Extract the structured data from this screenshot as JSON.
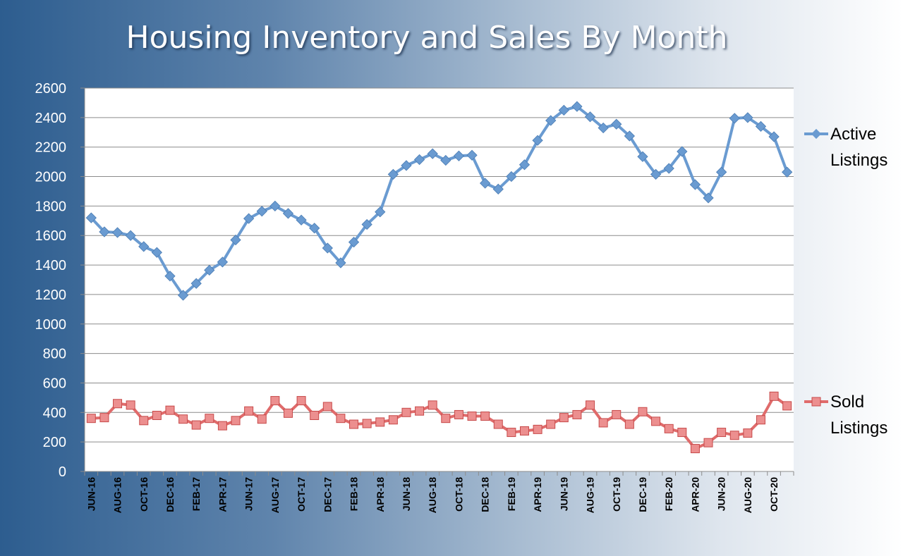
{
  "chart_data": {
    "type": "line",
    "title": "Housing Inventory and Sales By Month",
    "xlabel": "",
    "ylabel": "",
    "ylim": [
      0,
      2600
    ],
    "yticks": [
      0,
      200,
      400,
      600,
      800,
      1000,
      1200,
      1400,
      1600,
      1800,
      2000,
      2200,
      2400,
      2600
    ],
    "grid": true,
    "legend": "right",
    "categories": [
      "JUN-16",
      "JUL-16",
      "AUG-16",
      "SEP-16",
      "OCT-16",
      "NOV-16",
      "DEC-16",
      "JAN-17",
      "FEB-17",
      "MAR-17",
      "APR-17",
      "MAY-17",
      "JUN-17",
      "JUL-17",
      "AUG-17",
      "SEP-17",
      "OCT-17",
      "NOV-17",
      "DEC-17",
      "JAN-18",
      "FEB-18",
      "MAR-18",
      "APR-18",
      "MAY-18",
      "JUN-18",
      "JUL-18",
      "AUG-18",
      "SEP-18",
      "OCT-18",
      "NOV-18",
      "DEC-18",
      "JAN-19",
      "FEB-19",
      "MAR-19",
      "APR-19",
      "MAY-19",
      "JUN-19",
      "JUL-19",
      "AUG-19",
      "SEP-19",
      "OCT-19",
      "NOV-19",
      "DEC-19",
      "JAN-20",
      "FEB-20",
      "MAR-20",
      "APR-20",
      "MAY-20",
      "JUN-20",
      "JUL-20",
      "AUG-20",
      "SEP-20",
      "OCT-20",
      "NOV-20"
    ],
    "tick_labels": [
      "JUN-16",
      "AUG-16",
      "OCT-16",
      "DEC-16",
      "FEB-17",
      "APR-17",
      "JUN-17",
      "AUG-17",
      "OCT-17",
      "DEC-17",
      "FEB-18",
      "APR-18",
      "JUN-18",
      "AUG-18",
      "OCT-18",
      "DEC-18",
      "FEB-19",
      "APR-19",
      "JUN-19",
      "AUG-19",
      "OCT-19",
      "DEC-19",
      "FEB-20",
      "APR-20",
      "JUN-20",
      "AUG-20",
      "OCT-20"
    ],
    "series": [
      {
        "name_lines": [
          "Active",
          "Listings"
        ],
        "color": "#6a9bd1",
        "marker": "diamond",
        "values": [
          1720,
          1625,
          1620,
          1600,
          1525,
          1485,
          1325,
          1195,
          1275,
          1365,
          1420,
          1570,
          1715,
          1765,
          1800,
          1750,
          1705,
          1650,
          1515,
          1415,
          1555,
          1675,
          1760,
          2015,
          2075,
          2115,
          2155,
          2110,
          2140,
          2145,
          1955,
          1915,
          2000,
          2080,
          2245,
          2380,
          2450,
          2475,
          2405,
          2330,
          2355,
          2275,
          2135,
          2015,
          2055,
          2170,
          1945,
          1855,
          2030,
          2395,
          2400,
          2340,
          2270,
          2030
        ]
      },
      {
        "name_lines": [
          "Sold",
          "Listings"
        ],
        "color": "#e06b6b",
        "marker": "square",
        "values": [
          360,
          365,
          460,
          450,
          345,
          380,
          415,
          355,
          315,
          360,
          310,
          345,
          410,
          355,
          480,
          395,
          480,
          380,
          440,
          360,
          320,
          325,
          335,
          350,
          400,
          410,
          450,
          360,
          385,
          375,
          375,
          320,
          265,
          275,
          285,
          320,
          365,
          385,
          450,
          330,
          385,
          320,
          405,
          340,
          290,
          265,
          155,
          195,
          265,
          245,
          260,
          350,
          510,
          445
        ]
      }
    ]
  }
}
